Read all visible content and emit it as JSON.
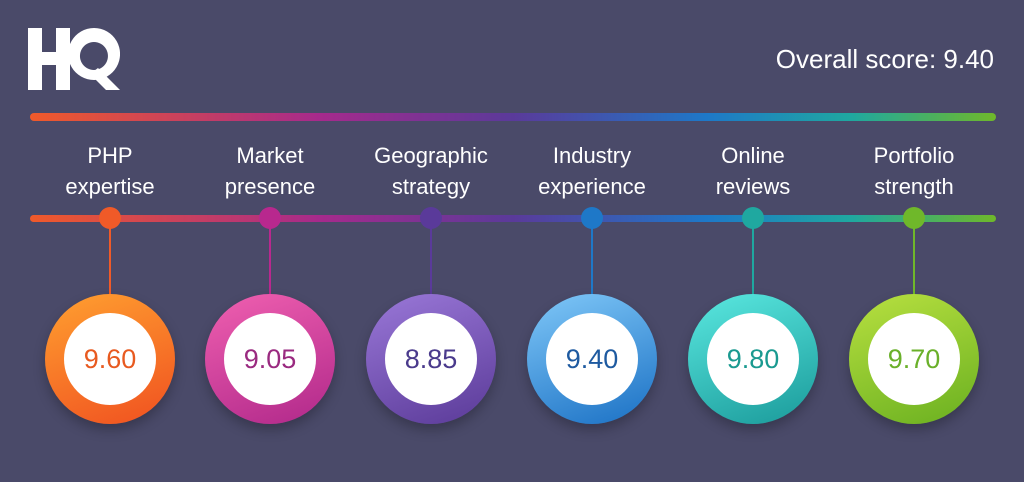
{
  "logo": {
    "text": "HQ"
  },
  "overall": {
    "label": "Overall score: 9.40"
  },
  "items": [
    {
      "line1": "PHP",
      "line2": "expertise",
      "score": "9.60",
      "color": "#f05a28",
      "ring_light": "#ffa030",
      "ring_dark": "#f05020",
      "text_color": "#e85a20"
    },
    {
      "line1": "Market",
      "line2": "presence",
      "score": "9.05",
      "color": "#b8288e",
      "ring_light": "#f060b0",
      "ring_dark": "#b0288a",
      "text_color": "#9a2a80"
    },
    {
      "line1": "Geographic",
      "line2": "strategy",
      "score": "8.85",
      "color": "#5a3a9a",
      "ring_light": "#9a78d8",
      "ring_dark": "#5a3a98",
      "text_color": "#4a3a8c"
    },
    {
      "line1": "Industry",
      "line2": "experience",
      "score": "9.40",
      "color": "#1e78c8",
      "ring_light": "#80c8f8",
      "ring_dark": "#1a70c4",
      "text_color": "#1e5aa0"
    },
    {
      "line1": "Online",
      "line2": "reviews",
      "score": "9.80",
      "color": "#1fa8a0",
      "ring_light": "#5ae8e0",
      "ring_dark": "#1a9a9a",
      "text_color": "#1a9a90"
    },
    {
      "line1": "Portfolio",
      "line2": "strength",
      "score": "9.70",
      "color": "#6fb82a",
      "ring_light": "#b8e040",
      "ring_dark": "#6ab020",
      "text_color": "#6ab02a"
    }
  ]
}
